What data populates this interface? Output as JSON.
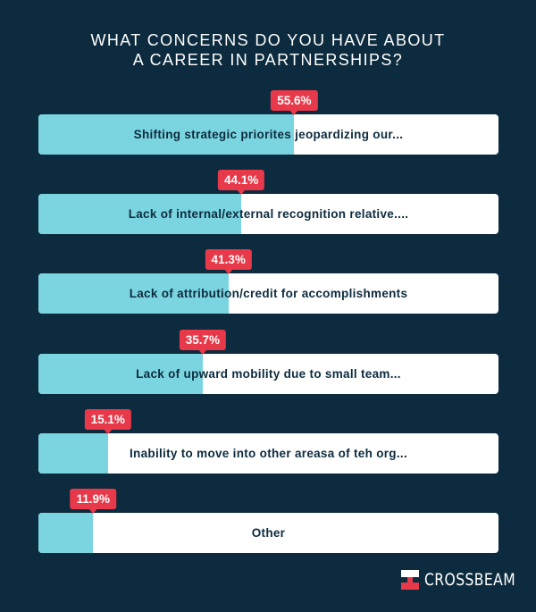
{
  "chart_data": {
    "type": "bar",
    "orientation": "horizontal",
    "title_lines": [
      "WHAT CONCERNS DO YOU HAVE ABOUT",
      "A CAREER IN PARTNERSHIPS?"
    ],
    "categories": [
      "Shifting strategic priorites jeopardizing our...",
      "Lack of internal/external recognition relative....",
      "Lack of attribution/credit for accomplishments",
      "Lack of upward mobility due to small team...",
      "Inability to move into other areasa of teh org...",
      "Other"
    ],
    "values": [
      55.6,
      44.1,
      41.3,
      35.7,
      15.1,
      11.9
    ],
    "value_labels": [
      "55.6%",
      "44.1%",
      "41.3%",
      "35.7%",
      "15.1%",
      "11.9%"
    ],
    "xlim": [
      0,
      100
    ],
    "grid": false
  },
  "colors": {
    "background": "#0d2b3e",
    "fill": "#7ad5e0",
    "track": "#ffffff",
    "badge": "#e8394a",
    "label_text": "#0d2b3e"
  },
  "brand": {
    "name": "CROSSBEAM",
    "icon": "crossbeam-logo-icon"
  }
}
